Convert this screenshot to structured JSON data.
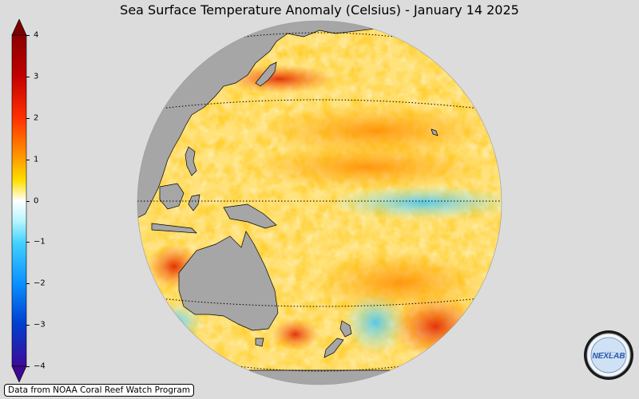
{
  "title": "Sea Surface Temperature Anomaly (Celsius) - January 14 2025",
  "credit": "Data from NOAA Coral Reef Watch Program",
  "logo": {
    "text": "NEXLAB"
  },
  "colorbar": {
    "ticks": [
      "4",
      "3",
      "2",
      "1",
      "0",
      "−1",
      "−2",
      "−3",
      "−4"
    ],
    "colors": [
      "#6a0012",
      "#b00000",
      "#e31a1c",
      "#ff6a00",
      "#ffb000",
      "#fff000",
      "#ffffff",
      "#a8f4ff",
      "#40c8ff",
      "#0a8cff",
      "#0050d0",
      "#3a10a0"
    ]
  },
  "map": {
    "land_color": "#a6a6a6",
    "ocean_base": "#fff3b0",
    "warm_color": "#ff7a00",
    "hot_color": "#d40000",
    "cool_color": "#5ad2ff"
  }
}
